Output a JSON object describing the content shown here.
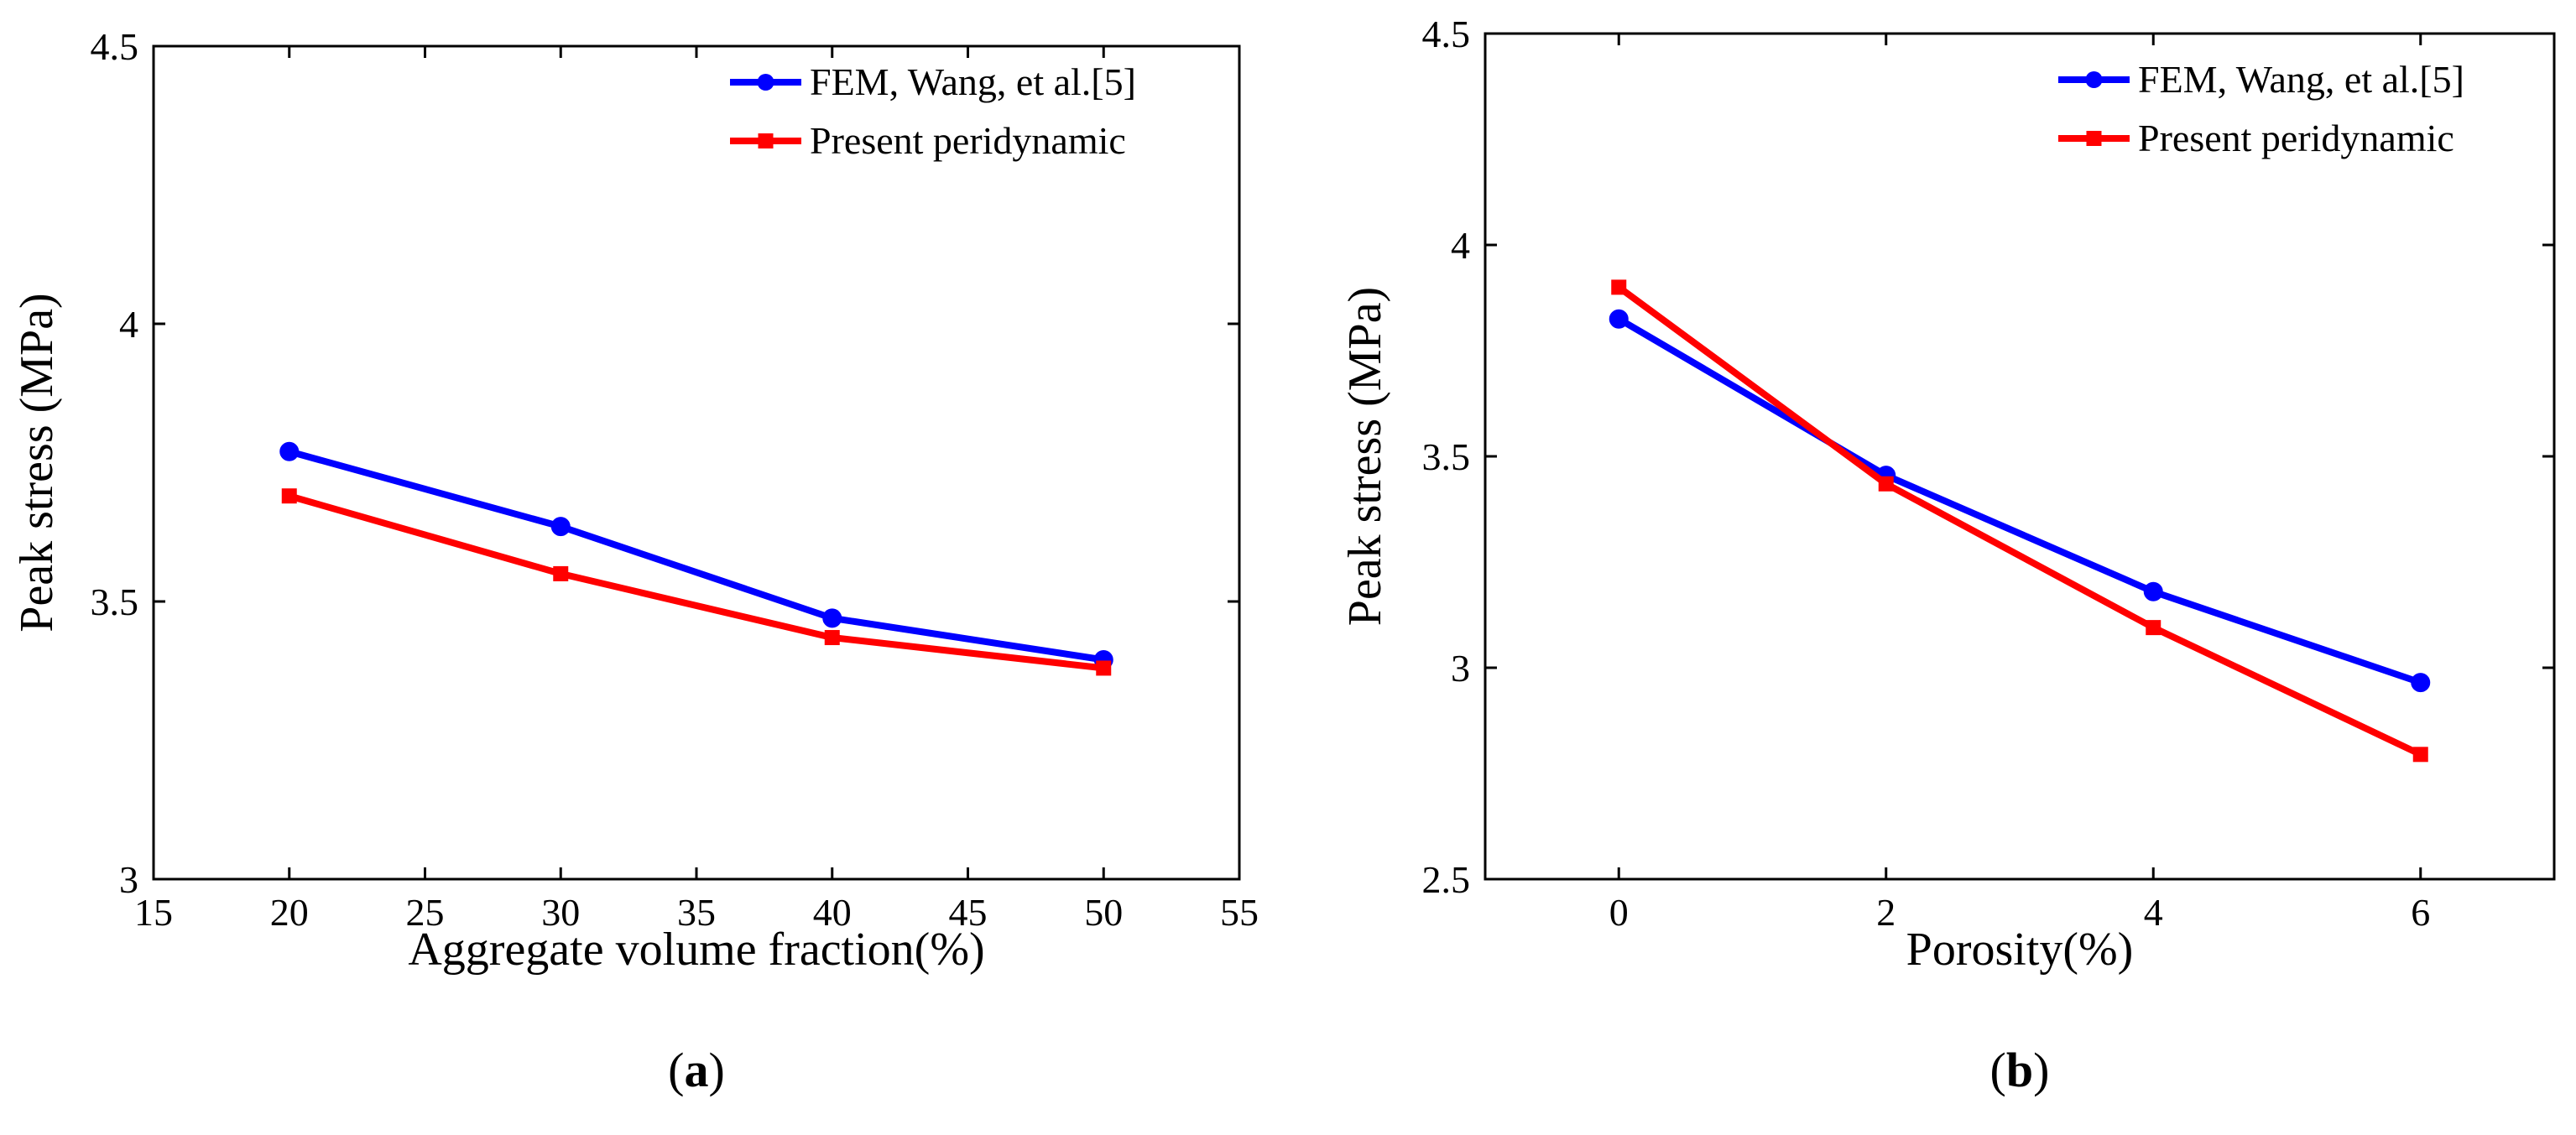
{
  "chart_data": [
    {
      "type": "line",
      "panel_label": "a",
      "title": "",
      "xlabel": "Aggregate volume fraction(%)",
      "ylabel": "Peak stress (MPa)",
      "xlim": [
        15,
        55
      ],
      "ylim": [
        3,
        4.5
      ],
      "x_ticks": [
        15,
        20,
        25,
        30,
        35,
        40,
        45,
        50,
        55
      ],
      "y_ticks": [
        3,
        3.5,
        4,
        4.5
      ],
      "x_tick_labels": [
        "15",
        "20",
        "25",
        "30",
        "35",
        "40",
        "45",
        "50",
        "55"
      ],
      "y_tick_labels": [
        "3",
        "3.5",
        "4",
        "4.5"
      ],
      "grid": false,
      "legend_position": "top-right",
      "x": [
        20,
        30,
        40,
        50
      ],
      "series": [
        {
          "name": "FEM, Wang, et al.[5]",
          "color": "#0000ff",
          "marker": "circle",
          "values": [
            3.77,
            3.635,
            3.47,
            3.395
          ]
        },
        {
          "name": "Present peridynamic",
          "color": "#ff0000",
          "marker": "square",
          "values": [
            3.69,
            3.55,
            3.435,
            3.38
          ]
        }
      ]
    },
    {
      "type": "line",
      "panel_label": "b",
      "title": "",
      "xlabel": "Porosity(%)",
      "ylabel": "Peak stress (MPa)",
      "xlim": [
        -1,
        7
      ],
      "ylim": [
        2.5,
        4.5
      ],
      "x_ticks": [
        0,
        2,
        4,
        6
      ],
      "y_ticks": [
        2.5,
        3,
        3.5,
        4,
        4.5
      ],
      "x_tick_labels": [
        "0",
        "2",
        "4",
        "6"
      ],
      "y_tick_labels": [
        "2.5",
        "3",
        "3.5",
        "4",
        "4.5"
      ],
      "grid": false,
      "legend_position": "top-right",
      "x": [
        0,
        2,
        4,
        6
      ],
      "series": [
        {
          "name": "FEM, Wang, et al.[5]",
          "color": "#0000ff",
          "marker": "circle",
          "values": [
            3.825,
            3.455,
            3.18,
            2.965
          ]
        },
        {
          "name": "Present peridynamic",
          "color": "#ff0000",
          "marker": "square",
          "values": [
            3.9,
            3.435,
            3.095,
            2.795
          ]
        }
      ]
    }
  ]
}
